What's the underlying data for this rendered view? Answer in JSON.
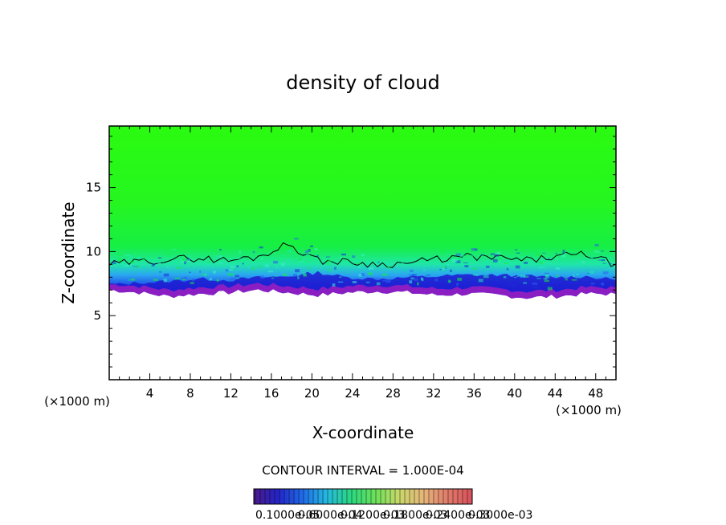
{
  "chart_data": {
    "type": "heatmap",
    "title": "density of cloud",
    "xlabel": "X-coordinate",
    "ylabel": "Z-coordinate",
    "x_unit": "(×1000 m)",
    "y_unit": "(×1000 m)",
    "xlim": [
      0,
      50
    ],
    "ylim": [
      0,
      19.8
    ],
    "x_ticks": [
      4,
      8,
      12,
      16,
      20,
      24,
      28,
      32,
      36,
      40,
      44,
      48
    ],
    "y_ticks": [
      5,
      10,
      15
    ],
    "contour_interval_text": "CONTOUR INTERVAL = 1.000E-04",
    "colorbar_labels": [
      "0.1000e-05",
      "0.6000e-04",
      "0.1200e-03",
      "0.1800e-03",
      "0.2400e-03",
      "0.3000e-03"
    ],
    "cloud_base_z": [
      7.0,
      6.8,
      6.5,
      6.7,
      6.8,
      7.0,
      6.8,
      6.6,
      6.8,
      6.9,
      6.8,
      6.6,
      6.7,
      6.6,
      6.4,
      6.5,
      6.7,
      6.7
    ],
    "dense_layer_top_z": [
      8.0,
      8.2,
      8.3,
      8.5,
      8.4,
      8.6,
      8.7,
      9.0,
      8.6,
      8.5,
      8.6,
      8.7,
      8.8,
      8.8,
      8.7,
      8.6,
      8.7,
      8.4
    ],
    "contour_top_z": [
      9.0,
      9.2,
      9.4,
      9.5,
      9.3,
      9.6,
      10.6,
      9.3,
      9.2,
      9.0,
      9.1,
      9.4,
      9.6,
      9.5,
      9.3,
      9.6,
      9.8,
      9.0
    ]
  },
  "colors": {
    "top_green": "#2bfb10",
    "mid_green": "#14ee3a",
    "cyan": "#20e4b4",
    "blue": "#2a60f0",
    "deep_blue": "#1d1ad0",
    "purple": "#8a1ec2"
  },
  "colorbar_gradient": [
    "#4a1a8a",
    "#2424c8",
    "#1f6ae8",
    "#25b8e0",
    "#2ad880",
    "#6be05a",
    "#c9d86a",
    "#e6b57a",
    "#e07a6a",
    "#d8505c"
  ]
}
